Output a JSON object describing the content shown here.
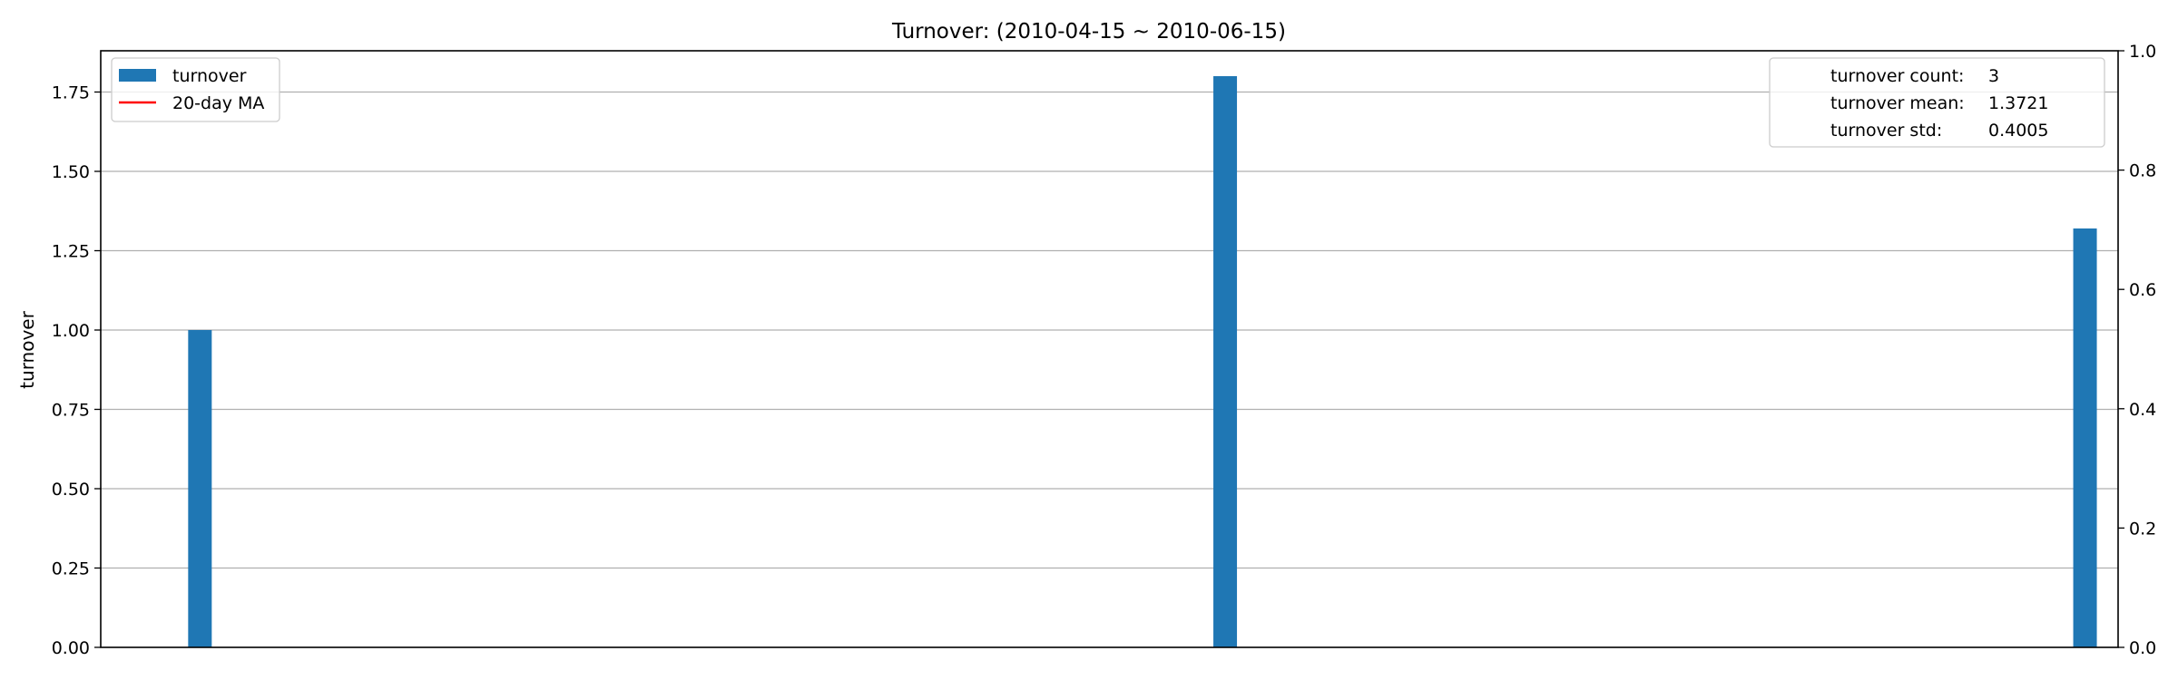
{
  "chart_data": {
    "type": "bar",
    "title": "Turnover: (2010-04-15 ~ 2010-06-15)",
    "ylabel": "turnover",
    "ylim": [
      0,
      1.88
    ],
    "yticks": [
      "0.00",
      "0.25",
      "0.50",
      "0.75",
      "1.00",
      "1.25",
      "1.50",
      "1.75"
    ],
    "y2lim": [
      0,
      1.0
    ],
    "y2ticks": [
      "0.0",
      "0.2",
      "0.4",
      "0.6",
      "0.8",
      "1.0"
    ],
    "xlim": [
      "2010-04-15",
      "2010-06-15"
    ],
    "grid": "horizontal",
    "series": [
      {
        "name": "turnover",
        "color": "#1f77b4",
        "x": [
          "2010-04-18",
          "2010-05-19",
          "2010-06-14"
        ],
        "values": [
          1.0,
          1.8,
          1.32
        ]
      },
      {
        "name": "20-day MA",
        "color": "#ff0000",
        "values": []
      }
    ],
    "legend": {
      "placement": "top-left",
      "items": [
        {
          "label": "turnover",
          "kind": "patch",
          "color": "#1f77b4"
        },
        {
          "label": "20-day MA",
          "kind": "line",
          "color": "#ff0000"
        }
      ]
    },
    "stats_box": {
      "placement": "top-right",
      "rows": [
        {
          "label": "turnover count:",
          "value": "3"
        },
        {
          "label": "turnover mean:",
          "value": "1.3721"
        },
        {
          "label": "turnover std:",
          "value": "0.4005"
        }
      ]
    }
  }
}
